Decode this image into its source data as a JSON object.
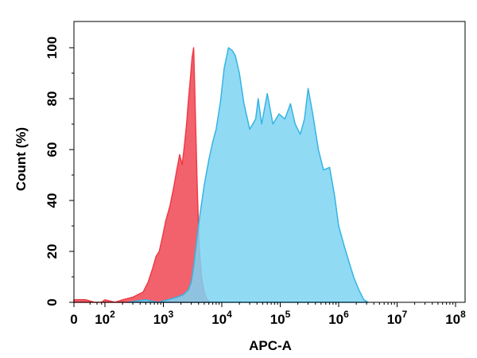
{
  "chart_data": {
    "type": "area",
    "xlabel": "APC-A",
    "ylabel": "Count  (%)",
    "x_scale": "log",
    "xlim": [
      0,
      100000000
    ],
    "ylim": [
      0,
      100
    ],
    "x_tick_labels": [
      {
        "base": "0",
        "exp": "",
        "value": 0
      },
      {
        "base": "10",
        "exp": "2",
        "value": 100
      },
      {
        "base": "10",
        "exp": "3",
        "value": 1000
      },
      {
        "base": "10",
        "exp": "4",
        "value": 10000
      },
      {
        "base": "10",
        "exp": "5",
        "value": 100000
      },
      {
        "base": "10",
        "exp": "6",
        "value": 1000000
      },
      {
        "base": "10",
        "exp": "7",
        "value": 10000000
      },
      {
        "base": "10",
        "exp": "8",
        "value": 100000000
      }
    ],
    "y_tick_labels": [
      "0",
      "20",
      "40",
      "60",
      "80",
      "100"
    ],
    "grid": false,
    "legend": "none",
    "series": [
      {
        "color": "#f03c46",
        "fill": "#f05a64",
        "points": [
          [
            0,
            1
          ],
          [
            5,
            1
          ],
          [
            20,
            0
          ],
          [
            60,
            0
          ],
          [
            100,
            1
          ],
          [
            150,
            0
          ],
          [
            200,
            1
          ],
          [
            300,
            2
          ],
          [
            450,
            4
          ],
          [
            550,
            8
          ],
          [
            650,
            13
          ],
          [
            750,
            18
          ],
          [
            850,
            20
          ],
          [
            950,
            25
          ],
          [
            1100,
            32
          ],
          [
            1300,
            38
          ],
          [
            1500,
            45
          ],
          [
            1700,
            52
          ],
          [
            1900,
            58
          ],
          [
            2100,
            54
          ],
          [
            2300,
            62
          ],
          [
            2500,
            70
          ],
          [
            2700,
            80
          ],
          [
            2900,
            88
          ],
          [
            3100,
            96
          ],
          [
            3300,
            100
          ],
          [
            3550,
            72
          ],
          [
            3800,
            45
          ],
          [
            4100,
            22
          ],
          [
            4500,
            10
          ],
          [
            5000,
            4
          ],
          [
            5600,
            1
          ],
          [
            6300,
            0
          ]
        ]
      },
      {
        "color": "#35b4e4",
        "fill": "#7ed3f2",
        "points": [
          [
            250,
            0
          ],
          [
            500,
            1
          ],
          [
            800,
            0
          ],
          [
            1200,
            1
          ],
          [
            1700,
            2
          ],
          [
            2200,
            3
          ],
          [
            2700,
            5
          ],
          [
            3000,
            8
          ],
          [
            3300,
            14
          ],
          [
            3700,
            24
          ],
          [
            4200,
            34
          ],
          [
            5000,
            46
          ],
          [
            6000,
            56
          ],
          [
            7000,
            63
          ],
          [
            8000,
            68
          ],
          [
            9500,
            79
          ],
          [
            11000,
            92
          ],
          [
            13000,
            100
          ],
          [
            15000,
            99
          ],
          [
            17000,
            97
          ],
          [
            20000,
            90
          ],
          [
            24000,
            78
          ],
          [
            30000,
            68
          ],
          [
            38000,
            72
          ],
          [
            42000,
            80
          ],
          [
            48000,
            70
          ],
          [
            60000,
            82
          ],
          [
            75000,
            70
          ],
          [
            95000,
            74
          ],
          [
            120000,
            72
          ],
          [
            150000,
            78
          ],
          [
            180000,
            70
          ],
          [
            220000,
            66
          ],
          [
            260000,
            72
          ],
          [
            300000,
            84
          ],
          [
            360000,
            74
          ],
          [
            450000,
            60
          ],
          [
            550000,
            52
          ],
          [
            700000,
            53
          ],
          [
            850000,
            42
          ],
          [
            1000000,
            30
          ],
          [
            1250000,
            22
          ],
          [
            1500000,
            16
          ],
          [
            1800000,
            10
          ],
          [
            2200000,
            5
          ],
          [
            2700000,
            1
          ],
          [
            3200000,
            0
          ]
        ]
      }
    ]
  }
}
